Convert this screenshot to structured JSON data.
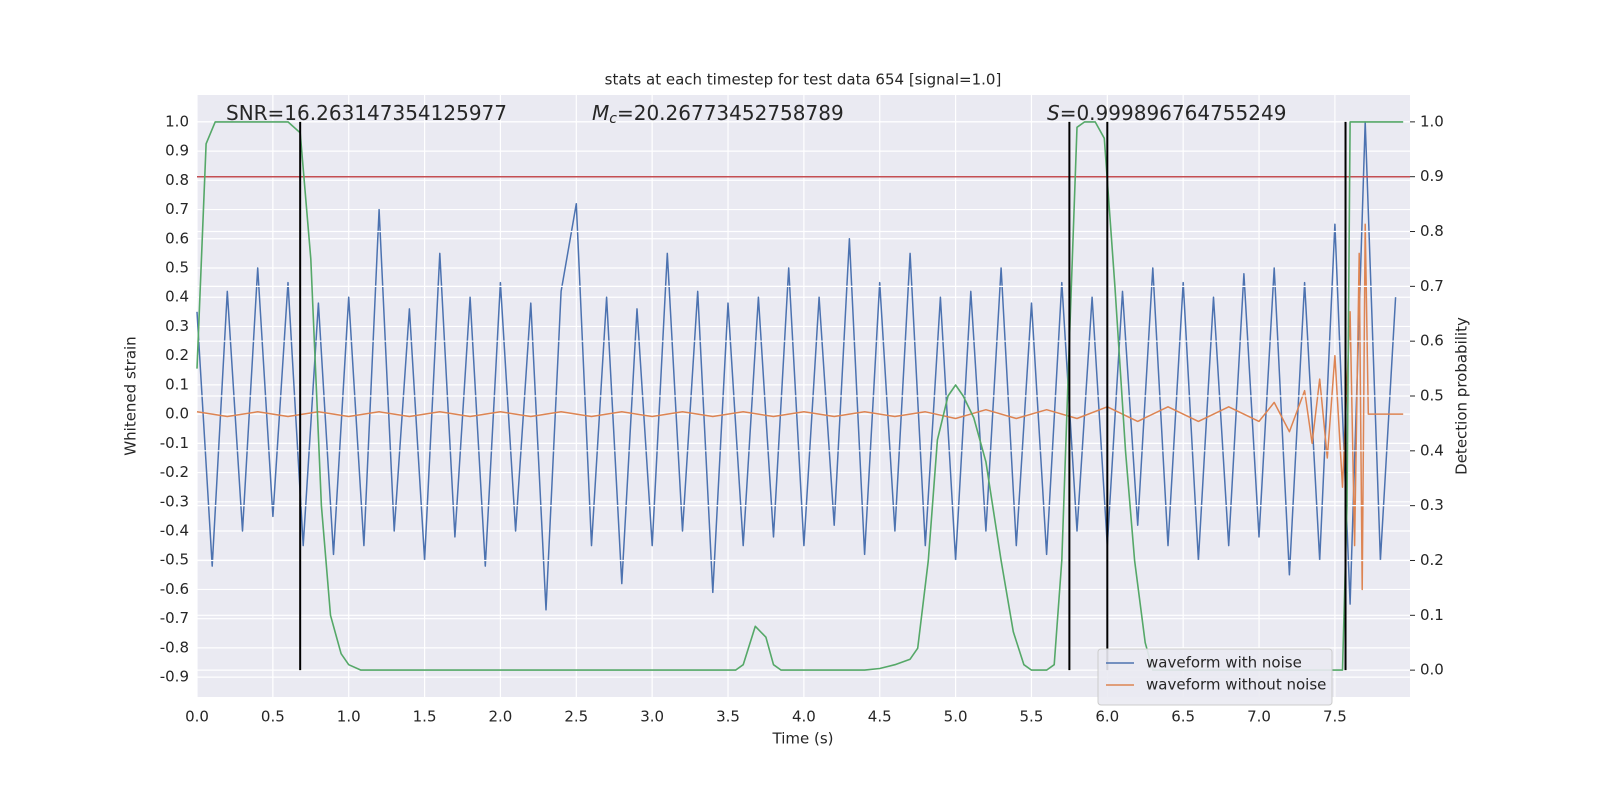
{
  "chart_data": {
    "type": "line",
    "title": "stats at each timestep for test data 654 [signal=1.0]",
    "x_label": "Time (s)",
    "y_label": "Whitened strain",
    "y2_label": "Detection probability",
    "xlim": [
      0,
      7.995
    ],
    "ylim": [
      -0.968,
      1.092
    ],
    "y2lim": [
      -0.049,
      1.049
    ],
    "xticks": [
      {
        "value": 0,
        "label": "0.0"
      },
      0.5,
      {
        "value": 1,
        "label": "1.0"
      },
      1.5,
      {
        "value": 2,
        "label": "2.0"
      },
      2.5,
      {
        "value": 3,
        "label": "3.0"
      },
      3.5,
      {
        "value": 4,
        "label": "4.0"
      },
      4.5,
      {
        "value": 5,
        "label": "5.0"
      },
      5.5,
      {
        "value": 6,
        "label": "6.0"
      },
      6.5,
      {
        "value": 7,
        "label": "7.0"
      },
      7.5
    ],
    "yticks": [
      -0.9,
      -0.8,
      -0.7,
      -0.6,
      -0.5,
      -0.4,
      -0.3,
      -0.2,
      -0.1,
      {
        "value": 0,
        "label": "0.0"
      },
      0.1,
      0.2,
      0.3,
      0.4,
      0.5,
      0.6,
      0.7,
      0.8,
      0.9,
      {
        "value": 1,
        "label": "1.0"
      }
    ],
    "y2ticks": [
      {
        "value": 0,
        "label": "0.0"
      },
      0.1,
      0.2,
      0.3,
      0.4,
      0.5,
      0.6,
      0.7,
      0.8,
      0.9,
      {
        "value": 1,
        "label": "1.0"
      }
    ],
    "grid": true,
    "legend": "lower right",
    "annotations": [
      {
        "text": "SNR=16.263147354125977"
      },
      {
        "symbol": "M",
        "subscript": "c",
        "text": "=20.26773452758789"
      },
      {
        "symbol": "S",
        "text": "=0.999896764755249"
      }
    ],
    "series": [
      {
        "name": "waveform with noise",
        "color": "#4c72b0",
        "x": [
          0,
          0.1,
          0.2,
          0.3,
          0.4,
          0.5,
          0.6,
          0.7,
          0.8,
          0.9,
          1,
          1.1,
          1.2,
          1.3,
          1.4,
          1.5,
          1.6,
          1.7,
          1.8,
          1.9,
          2,
          2.1,
          2.2,
          2.3,
          2.4,
          2.5,
          2.6,
          2.7,
          2.8,
          2.9,
          3,
          3.1,
          3.2,
          3.3,
          3.4,
          3.5,
          3.6,
          3.7,
          3.8,
          3.9,
          4,
          4.1,
          4.2,
          4.3,
          4.4,
          4.5,
          4.6,
          4.7,
          4.8,
          4.9,
          5,
          5.1,
          5.2,
          5.3,
          5.4,
          5.5,
          5.6,
          5.7,
          5.8,
          5.9,
          6,
          6.1,
          6.2,
          6.3,
          6.4,
          6.5,
          6.6,
          6.7,
          6.8,
          6.9,
          7,
          7.1,
          7.2,
          7.3,
          7.4,
          7.5,
          7.6,
          7.7,
          7.8,
          7.9
        ],
        "values": [
          0.35,
          -0.52,
          0.42,
          -0.4,
          0.5,
          -0.35,
          0.45,
          -0.45,
          0.38,
          -0.48,
          0.4,
          -0.45,
          0.7,
          -0.4,
          0.36,
          -0.5,
          0.55,
          -0.42,
          0.4,
          -0.52,
          0.45,
          -0.4,
          0.38,
          -0.67,
          0.42,
          0.72,
          -0.45,
          0.4,
          -0.58,
          0.36,
          -0.45,
          0.55,
          -0.4,
          0.42,
          -0.61,
          0.38,
          -0.45,
          0.4,
          -0.42,
          0.5,
          -0.45,
          0.4,
          -0.38,
          0.6,
          -0.48,
          0.45,
          -0.4,
          0.55,
          -0.45,
          0.4,
          -0.5,
          0.42,
          -0.4,
          0.5,
          -0.45,
          0.38,
          -0.48,
          0.45,
          -0.4,
          0.4,
          -0.45,
          0.42,
          -0.38,
          0.5,
          -0.45,
          0.45,
          -0.5,
          0.4,
          -0.45,
          0.48,
          -0.42,
          0.5,
          -0.55,
          0.45,
          -0.5,
          0.65,
          -0.65,
          1.0,
          -0.5,
          0.4
        ]
      },
      {
        "name": "waveform without noise",
        "color": "#dd8452",
        "x": [
          0,
          0.2,
          0.4,
          0.6,
          0.8,
          1,
          1.2,
          1.4,
          1.6,
          1.8,
          2,
          2.2,
          2.4,
          2.6,
          2.8,
          3,
          3.2,
          3.4,
          3.6,
          3.8,
          4,
          4.2,
          4.4,
          4.6,
          4.8,
          5,
          5.2,
          5.4,
          5.6,
          5.8,
          6,
          6.2,
          6.4,
          6.6,
          6.8,
          7,
          7.1,
          7.2,
          7.3,
          7.35,
          7.4,
          7.45,
          7.5,
          7.55,
          7.6,
          7.63,
          7.66,
          7.68,
          7.7,
          7.72,
          7.95
        ],
        "values": [
          0.008,
          -0.008,
          0.008,
          -0.008,
          0.008,
          -0.008,
          0.008,
          -0.008,
          0.008,
          -0.008,
          0.008,
          -0.008,
          0.008,
          -0.008,
          0.008,
          -0.008,
          0.008,
          -0.008,
          0.008,
          -0.008,
          0.008,
          -0.008,
          0.008,
          -0.008,
          0.008,
          -0.015,
          0.015,
          -0.015,
          0.015,
          -0.015,
          0.025,
          -0.025,
          0.025,
          -0.025,
          0.025,
          -0.025,
          0.04,
          -0.06,
          0.08,
          -0.1,
          0.12,
          -0.15,
          0.2,
          -0.25,
          0.35,
          -0.45,
          0.55,
          -0.6,
          0.65,
          0,
          0
        ]
      },
      {
        "color": "#55a868",
        "axis": "y2",
        "x": [
          0,
          0.06,
          0.12,
          0.6,
          0.68,
          0.75,
          0.82,
          0.88,
          0.95,
          1,
          1.08,
          3.55,
          3.6,
          3.68,
          3.75,
          3.8,
          3.85,
          4.4,
          4.5,
          4.6,
          4.7,
          4.75,
          4.82,
          4.88,
          4.95,
          5,
          5.05,
          5.12,
          5.2,
          5.3,
          5.38,
          5.45,
          5.5,
          5.6,
          5.65,
          5.7,
          5.75,
          5.8,
          5.85,
          5.92,
          5.98,
          6.05,
          6.12,
          6.18,
          6.25,
          6.3,
          7.55,
          7.58,
          7.6,
          7.65,
          7.95
        ],
        "values": [
          0.55,
          0.96,
          1,
          1,
          0.98,
          0.75,
          0.3,
          0.1,
          0.03,
          0.01,
          0,
          0,
          0.01,
          0.08,
          0.06,
          0.01,
          0,
          0,
          0.003,
          0.01,
          0.02,
          0.04,
          0.2,
          0.42,
          0.5,
          0.52,
          0.5,
          0.46,
          0.38,
          0.2,
          0.07,
          0.01,
          0,
          0,
          0.01,
          0.2,
          0.6,
          0.99,
          1,
          1,
          0.97,
          0.7,
          0.4,
          0.2,
          0.05,
          0,
          0,
          0.3,
          1,
          1,
          1
        ]
      }
    ],
    "hline": {
      "y": 0.9,
      "axis": "y2",
      "color": "#c44e52"
    },
    "vlines": {
      "x": [
        0.68,
        5.75,
        6.0,
        7.57
      ],
      "ymin": 0,
      "ymax": 1,
      "axis": "y2",
      "color": "#000000"
    }
  }
}
